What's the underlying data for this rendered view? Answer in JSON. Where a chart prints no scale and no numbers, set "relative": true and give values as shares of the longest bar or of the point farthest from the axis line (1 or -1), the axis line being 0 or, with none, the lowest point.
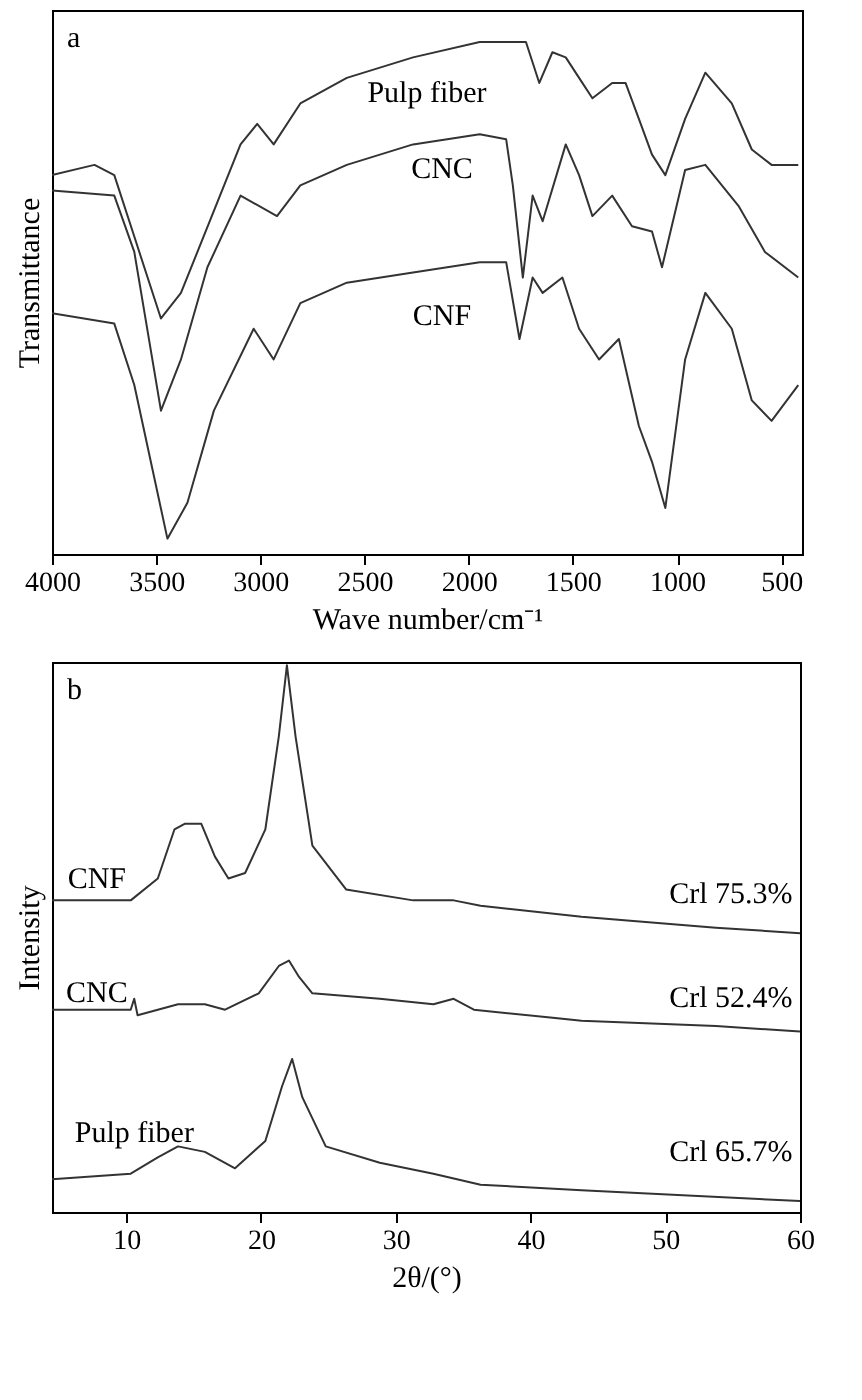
{
  "chart_data": [
    {
      "type": "line",
      "relative": true,
      "xlabel": "Wave number/cm⁻¹",
      "ylabel": "Transmittance",
      "xlim": [
        4000,
        400
      ],
      "xticks": [
        4000,
        3500,
        3000,
        2500,
        2000,
        1500,
        1000,
        500
      ],
      "annotations": [
        "a"
      ],
      "series": [
        {
          "name": "Pulp fiber",
          "color": "#333333",
          "x": [
            4000,
            3796,
            3701,
            3605,
            3477,
            3381,
            3223,
            3095,
            3015,
            2936,
            2808,
            2585,
            2267,
            1947,
            1725,
            1661,
            1598,
            1534,
            1470,
            1406,
            1311,
            1247,
            1183,
            1120,
            1056,
            961,
            864,
            737,
            641,
            546,
            418
          ],
          "values": [
            0.74,
            0.76,
            0.74,
            0.62,
            0.46,
            0.51,
            0.67,
            0.8,
            0.84,
            0.8,
            0.88,
            0.93,
            0.97,
            1.0,
            1.0,
            0.92,
            0.98,
            0.97,
            0.93,
            0.89,
            0.92,
            0.92,
            0.85,
            0.78,
            0.74,
            0.85,
            0.94,
            0.88,
            0.79,
            0.76,
            0.76
          ]
        },
        {
          "name": "CNC",
          "color": "#333333",
          "x": [
            4000,
            3701,
            3605,
            3477,
            3381,
            3254,
            3095,
            2920,
            2808,
            2585,
            2267,
            1947,
            1820,
            1788,
            1740,
            1693,
            1645,
            1534,
            1470,
            1406,
            1311,
            1216,
            1120,
            1072,
            961,
            864,
            705,
            578,
            418
          ],
          "values": [
            0.71,
            0.7,
            0.59,
            0.28,
            0.38,
            0.56,
            0.7,
            0.66,
            0.72,
            0.76,
            0.8,
            0.82,
            0.81,
            0.72,
            0.54,
            0.7,
            0.65,
            0.8,
            0.74,
            0.66,
            0.7,
            0.64,
            0.63,
            0.56,
            0.75,
            0.76,
            0.68,
            0.59,
            0.54
          ]
        },
        {
          "name": "CNF",
          "color": "#333333",
          "x": [
            4000,
            3701,
            3605,
            3446,
            3350,
            3223,
            3032,
            2936,
            2808,
            2585,
            2267,
            1947,
            1820,
            1756,
            1693,
            1645,
            1550,
            1470,
            1374,
            1279,
            1183,
            1120,
            1056,
            961,
            864,
            737,
            641,
            546,
            418
          ],
          "values": [
            0.47,
            0.45,
            0.33,
            0.03,
            0.1,
            0.28,
            0.44,
            0.38,
            0.49,
            0.53,
            0.55,
            0.57,
            0.57,
            0.42,
            0.54,
            0.51,
            0.54,
            0.44,
            0.38,
            0.42,
            0.25,
            0.18,
            0.09,
            0.38,
            0.51,
            0.44,
            0.3,
            0.26,
            0.33
          ]
        }
      ]
    },
    {
      "type": "line",
      "relative": true,
      "xlabel": "2θ/(°)",
      "ylabel": "Intensity",
      "xlim": [
        4.5,
        60
      ],
      "xticks": [
        10,
        20,
        30,
        40,
        50,
        60
      ],
      "annotations": [
        "b",
        "Crl 75.3%",
        "Crl 52.4%",
        "Crl 65.7%"
      ],
      "series": [
        {
          "name": "CNF",
          "color": "#333333",
          "x": [
            4.5,
            10.34,
            12.35,
            13.59,
            14.34,
            15.58,
            16.59,
            17.59,
            18.83,
            20.33,
            21.33,
            21.93,
            22.57,
            23.82,
            26.32,
            31.3,
            34.3,
            36.3,
            43.79,
            53.76,
            60
          ],
          "values": [
            0.57,
            0.57,
            0.61,
            0.7,
            0.71,
            0.71,
            0.65,
            0.61,
            0.62,
            0.7,
            0.87,
            1.0,
            0.87,
            0.67,
            0.59,
            0.57,
            0.57,
            0.56,
            0.54,
            0.52,
            0.51
          ]
        },
        {
          "name": "CNC",
          "color": "#333333",
          "x": [
            4.5,
            10.34,
            10.6,
            10.85,
            13.85,
            15.84,
            17.34,
            19.84,
            21.33,
            22.08,
            22.83,
            23.82,
            28.82,
            32.8,
            34.3,
            35.8,
            43.79,
            53.76,
            60
          ],
          "values": [
            0.37,
            0.37,
            0.39,
            0.36,
            0.38,
            0.38,
            0.37,
            0.4,
            0.45,
            0.46,
            0.43,
            0.4,
            0.39,
            0.38,
            0.39,
            0.37,
            0.35,
            0.34,
            0.33
          ]
        },
        {
          "name": "Pulp fiber",
          "color": "#333333",
          "x": [
            4.5,
            10.34,
            12.35,
            13.85,
            15.84,
            18.08,
            20.33,
            21.57,
            22.32,
            23.07,
            24.81,
            28.82,
            32.8,
            34.55,
            36.3,
            43.79,
            60
          ],
          "values": [
            0.06,
            0.07,
            0.1,
            0.12,
            0.11,
            0.08,
            0.13,
            0.23,
            0.28,
            0.21,
            0.12,
            0.09,
            0.07,
            0.06,
            0.05,
            0.04,
            0.02
          ]
        }
      ]
    }
  ]
}
